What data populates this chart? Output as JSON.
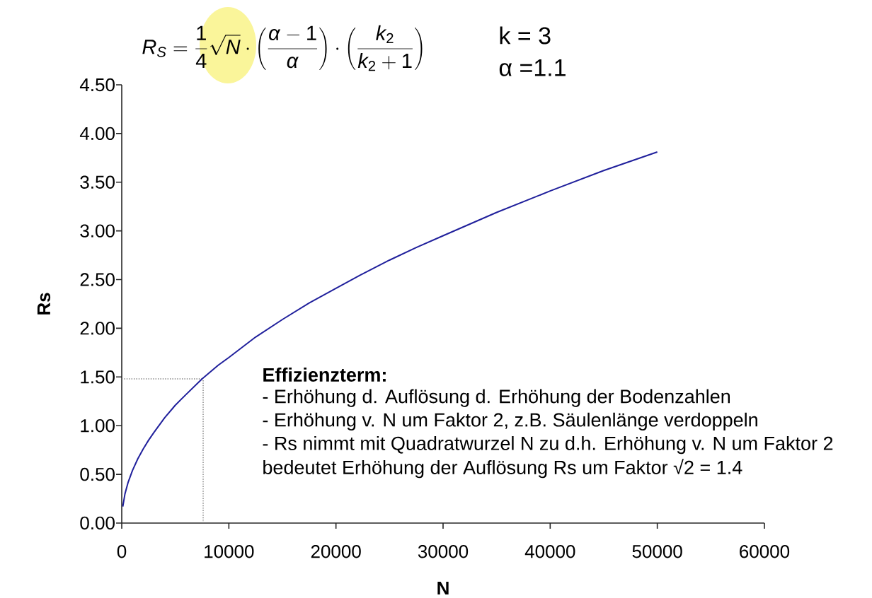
{
  "chart_data": {
    "type": "line",
    "title": "R_S=\\frac{1}{4}\\sqrt{N}\\cdot\\left(\\frac{\\alpha-1}{\\alpha}\\right)\\cdot\\left(\\frac{k_2}{k_2+1}\\right)",
    "xlabel": "N",
    "ylabel": "Rs",
    "annotations": [
      "k = 3",
      "α =1.1",
      "Effizienzterm:",
      "- Erhöhung d. Auflösung d. Erhöhung der Bodenzahlen",
      "- Erhöhung v. N um Faktor 2, z.B. Säulenlänge verdoppeln",
      "- Rs nimmt mit Quadratwurzel N zu d.h. Erhöhung v. N um  Faktor 2",
      "bedeutet Erhöhung der Auflösung Rs um Faktor √2 = 1.4"
    ],
    "x": [
      100,
      300,
      600,
      1000,
      1500,
      2000,
      2500,
      3000,
      4000,
      5000,
      6000,
      7500,
      9000,
      10000,
      12500,
      15000,
      17500,
      20000,
      22500,
      25000,
      27500,
      30000,
      35000,
      40000,
      45000,
      50000
    ],
    "values": [
      0.17,
      0.3,
      0.42,
      0.54,
      0.66,
      0.76,
      0.85,
      0.93,
      1.08,
      1.21,
      1.32,
      1.48,
      1.62,
      1.7,
      1.91,
      2.09,
      2.26,
      2.41,
      2.56,
      2.7,
      2.83,
      2.95,
      3.19,
      3.41,
      3.62,
      3.81
    ],
    "color": "#20209C",
    "xlim": [
      0,
      60000
    ],
    "ylim": [
      0,
      4.5
    ],
    "xticks": [
      0,
      10000,
      20000,
      30000,
      40000,
      50000,
      60000
    ],
    "yticks": [
      {
        "value": 0,
        "label": "0.00"
      },
      {
        "value": 0.5,
        "label": "0.50"
      },
      {
        "value": 1,
        "label": "1.00"
      },
      {
        "value": 1.5,
        "label": "1.50"
      },
      {
        "value": 2,
        "label": "2.00"
      },
      {
        "value": 2.5,
        "label": "2.50"
      },
      {
        "value": 3,
        "label": "3.00"
      },
      {
        "value": 3.5,
        "label": "3.50"
      },
      {
        "value": 4,
        "label": "4.00"
      },
      {
        "value": 4.5,
        "label": "4.50"
      }
    ],
    "ref_lines": [
      {
        "axis": "y",
        "value": 1.48,
        "color": "#808080",
        "line_style": "dotted"
      },
      {
        "axis": "x",
        "value": 7600,
        "color": "#808080",
        "line_style": "dotted"
      }
    ]
  }
}
